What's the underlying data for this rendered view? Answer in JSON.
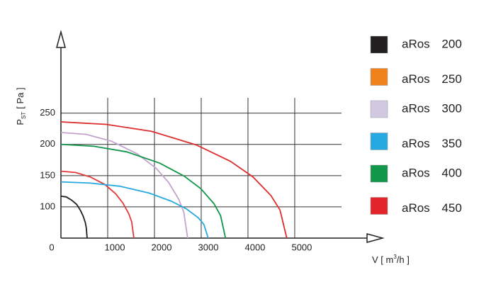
{
  "chart_data": {
    "type": "line",
    "y_label": {
      "main": "P",
      "sub": "ST",
      "unit": "[ Pa ]"
    },
    "x_label": {
      "main": "V [ m",
      "sup": "3",
      "unit": "/h ]"
    },
    "xlim": [
      0,
      6880
    ],
    "ylim": [
      50,
      380
    ],
    "xticks": [
      {
        "value": 0,
        "label": "0"
      },
      1000,
      2000,
      3000,
      4000,
      5000
    ],
    "yticks": [
      100,
      150,
      200,
      250
    ],
    "grid": true,
    "series": [
      {
        "name": "aRos 200",
        "color": "#231f20",
        "x": [
          0,
          112,
          224,
          336,
          420,
          476,
          521,
          543,
          560
        ],
        "values": [
          117,
          116,
          111,
          104,
          94,
          85,
          75,
          66,
          50
        ]
      },
      {
        "name": "aRos 250",
        "color": "#e23a3a",
        "x": [
          0,
          312,
          624,
          936,
          1170,
          1326,
          1451,
          1513,
          1560
        ],
        "values": [
          157,
          155,
          148,
          136,
          121,
          106,
          89,
          76,
          50
        ]
      },
      {
        "name": "aRos 300",
        "color": "#c4a3cf",
        "x": [
          0,
          542,
          1084,
          1626,
          2033,
          2304,
          2520,
          2629,
          2710
        ],
        "values": [
          219,
          216,
          205,
          185,
          162,
          139,
          112,
          91,
          50
        ]
      },
      {
        "name": "aRos 350",
        "color": "#26a9e0",
        "x": [
          0,
          630,
          1260,
          1890,
          2363,
          2678,
          2930,
          3056,
          3150
        ],
        "values": [
          140,
          138,
          133,
          122,
          109,
          97,
          83,
          72,
          50
        ]
      },
      {
        "name": "aRos 400",
        "color": "#12964a",
        "x": [
          0,
          704,
          1408,
          2112,
          2640,
          2992,
          3274,
          3414,
          3520
        ],
        "values": [
          200,
          197,
          188,
          170,
          149,
          129,
          105,
          86,
          50
        ]
      },
      {
        "name": "aRos 450",
        "color": "#dd2e2e",
        "x": [
          0,
          966,
          1932,
          2898,
          3623,
          4106,
          4492,
          4685,
          4830
        ],
        "values": [
          236,
          232,
          221,
          199,
          173,
          148,
          118,
          95,
          50
        ]
      }
    ],
    "legend_colors": [
      "#231f20",
      "#f0821e",
      "#d2c8e2",
      "#26a9e0",
      "#12964a",
      "#e3242b"
    ]
  }
}
